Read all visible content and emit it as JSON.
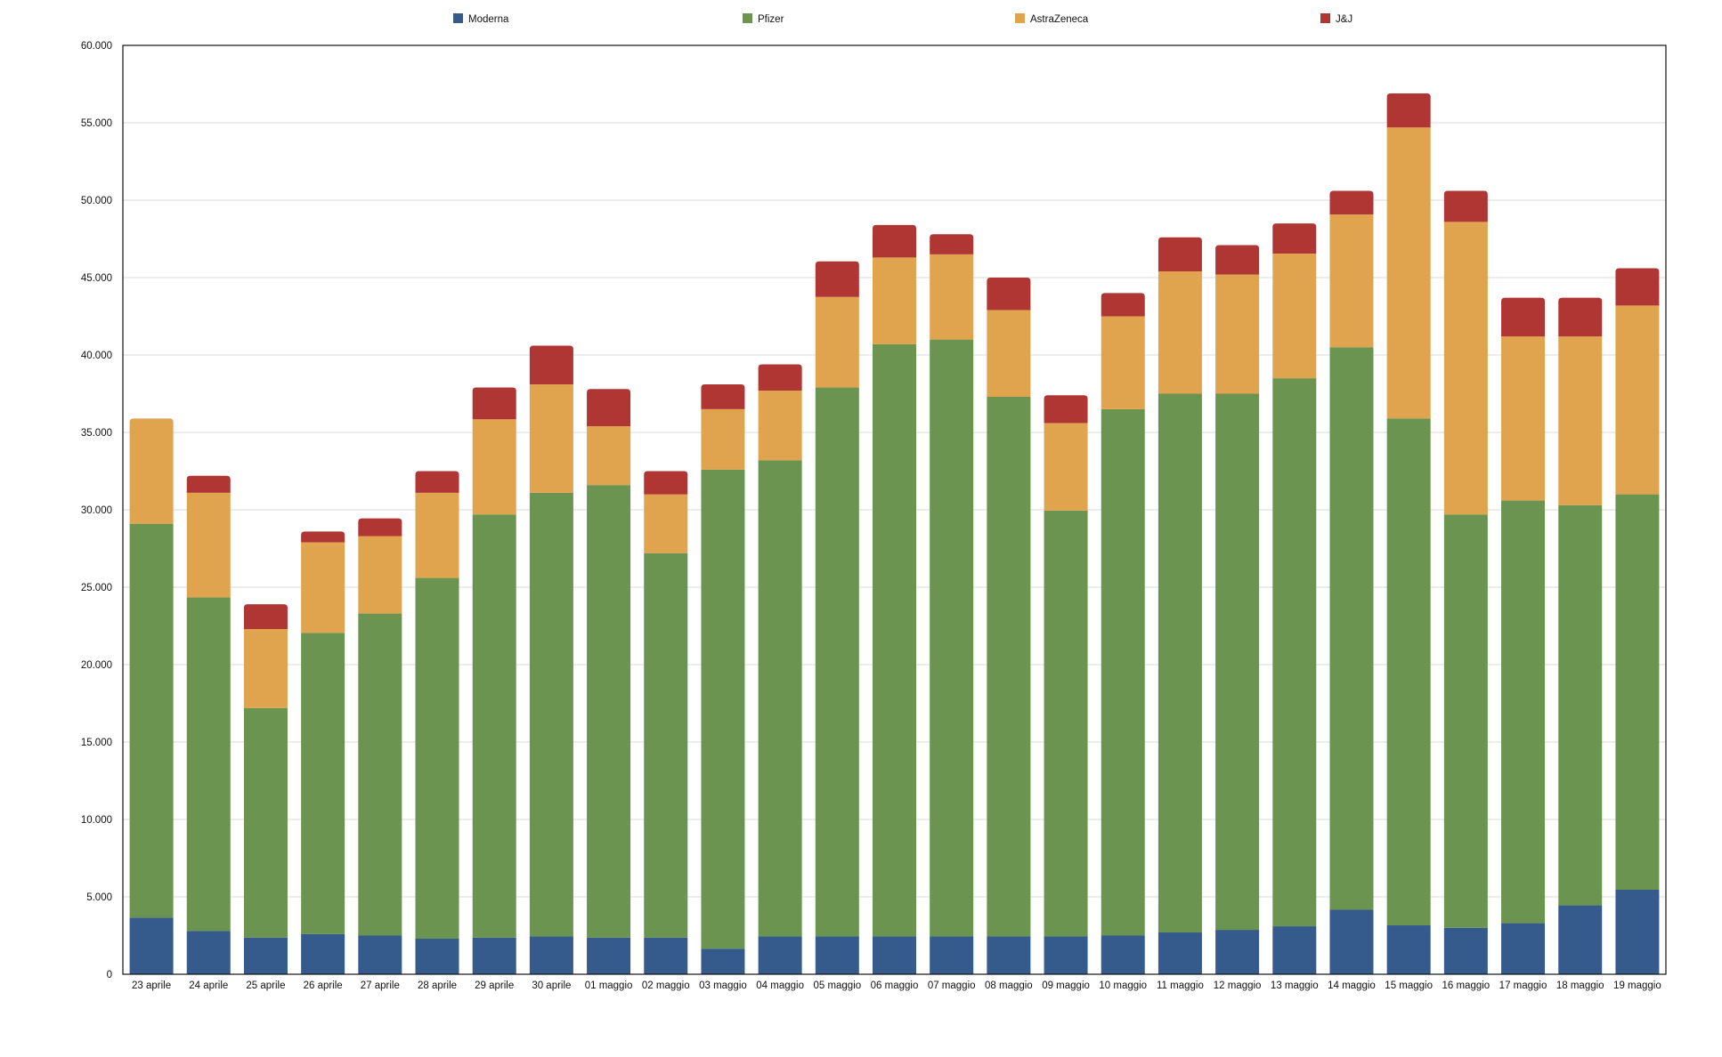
{
  "chart_data": {
    "type": "bar",
    "stacked": true,
    "title": "",
    "xlabel": "",
    "ylabel": "",
    "ylim": [
      0,
      60000
    ],
    "yticks": [
      0,
      5000,
      10000,
      15000,
      20000,
      25000,
      30000,
      35000,
      40000,
      45000,
      50000,
      55000,
      60000
    ],
    "ytick_labels": [
      "0",
      "5.000",
      "10.000",
      "15.000",
      "20.000",
      "25.000",
      "30.000",
      "35.000",
      "40.000",
      "45.000",
      "50.000",
      "55.000",
      "60.000"
    ],
    "grid": true,
    "legend_position": "top",
    "categories": [
      "23 aprile",
      "24 aprile",
      "25 aprile",
      "26 aprile",
      "27 aprile",
      "28 aprile",
      "29 aprile",
      "30 aprile",
      "01 maggio",
      "02 maggio",
      "03 maggio",
      "04 maggio",
      "05 maggio",
      "06 maggio",
      "07 maggio",
      "08 maggio",
      "09 maggio",
      "10 maggio",
      "11 maggio",
      "12 maggio",
      "13 maggio",
      "14 maggio",
      "15 maggio",
      "16 maggio",
      "17 maggio",
      "18 maggio",
      "19 maggio"
    ],
    "series": [
      {
        "name": "Moderna",
        "color": "#355a8c",
        "values": [
          3660,
          2800,
          2370,
          2600,
          2500,
          2300,
          2370,
          2440,
          2370,
          2370,
          1650,
          2440,
          2440,
          2440,
          2440,
          2440,
          2440,
          2500,
          2700,
          2870,
          3100,
          4170,
          3160,
          3000,
          3300,
          4450,
          5460
        ]
      },
      {
        "name": "Pfizer",
        "color": "#6a9450",
        "values": [
          25440,
          21550,
          14830,
          19450,
          20800,
          23300,
          27330,
          28660,
          29230,
          24830,
          30950,
          30760,
          35460,
          38260,
          38560,
          34860,
          27510,
          34000,
          34800,
          34630,
          35400,
          36330,
          32740,
          26700,
          27300,
          25850,
          25540
        ]
      },
      {
        "name": "AstraZeneca",
        "color": "#e0a34e",
        "values": [
          6800,
          6750,
          5100,
          5850,
          5000,
          5500,
          6150,
          7000,
          3800,
          3800,
          3900,
          4500,
          5850,
          5600,
          5500,
          5600,
          5650,
          6000,
          7900,
          7700,
          8050,
          8570,
          18800,
          18900,
          10600,
          10900,
          12200
        ]
      },
      {
        "name": "J&J",
        "color": "#b03634",
        "values": [
          0,
          1100,
          1600,
          700,
          1150,
          1400,
          2050,
          2500,
          2400,
          1500,
          1600,
          1700,
          2300,
          2100,
          1300,
          2100,
          1800,
          1500,
          2200,
          1900,
          1950,
          1530,
          2200,
          2000,
          2500,
          2500,
          2400
        ]
      }
    ]
  }
}
